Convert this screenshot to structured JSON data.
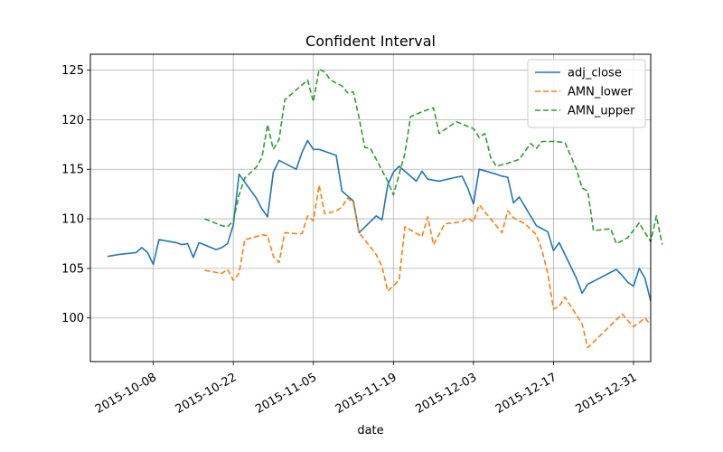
{
  "chart_data": {
    "type": "line",
    "title": "Confident Interval",
    "xlabel": "date",
    "ylabel": "",
    "xlim": [
      "2015-09-27",
      "2016-01-03"
    ],
    "ylim": [
      95.6,
      126.6
    ],
    "grid": true,
    "legend_position": "top-right",
    "x_ticks": [
      "2015-10-08",
      "2015-10-22",
      "2015-11-05",
      "2015-11-19",
      "2015-12-03",
      "2015-12-17",
      "2015-12-31"
    ],
    "y_ticks": [
      100,
      105,
      110,
      115,
      120,
      125
    ],
    "series": [
      {
        "name": "adj_close",
        "color": "#1f77b4",
        "style": "solid",
        "points": [
          [
            "2015-09-30",
            106.2
          ],
          [
            "2015-10-01",
            106.3
          ],
          [
            "2015-10-02",
            106.4
          ],
          [
            "2015-10-05",
            106.6
          ],
          [
            "2015-10-06",
            107.1
          ],
          [
            "2015-10-07",
            106.6
          ],
          [
            "2015-10-08",
            105.4
          ],
          [
            "2015-10-09",
            107.9
          ],
          [
            "2015-10-12",
            107.6
          ],
          [
            "2015-10-13",
            107.4
          ],
          [
            "2015-10-14",
            107.5
          ],
          [
            "2015-10-15",
            106.1
          ],
          [
            "2015-10-16",
            107.6
          ],
          [
            "2015-10-19",
            106.9
          ],
          [
            "2015-10-20",
            107.1
          ],
          [
            "2015-10-21",
            107.5
          ],
          [
            "2015-10-22",
            109.4
          ],
          [
            "2015-10-23",
            114.5
          ],
          [
            "2015-10-26",
            112.1
          ],
          [
            "2015-10-27",
            111.0
          ],
          [
            "2015-10-28",
            110.2
          ],
          [
            "2015-10-29",
            114.7
          ],
          [
            "2015-10-30",
            115.9
          ],
          [
            "2015-11-02",
            115.0
          ],
          [
            "2015-11-03",
            116.7
          ],
          [
            "2015-11-04",
            117.9
          ],
          [
            "2015-11-05",
            117.0
          ],
          [
            "2015-11-06",
            117.0
          ],
          [
            "2015-11-09",
            116.4
          ],
          [
            "2015-11-10",
            112.8
          ],
          [
            "2015-11-11",
            112.3
          ],
          [
            "2015-11-12",
            111.8
          ],
          [
            "2015-11-13",
            108.6
          ],
          [
            "2015-11-16",
            110.3
          ],
          [
            "2015-11-17",
            109.9
          ],
          [
            "2015-11-18",
            113.4
          ],
          [
            "2015-11-19",
            114.7
          ],
          [
            "2015-11-20",
            115.3
          ],
          [
            "2015-11-23",
            113.8
          ],
          [
            "2015-11-24",
            114.8
          ],
          [
            "2015-11-25",
            114.0
          ],
          [
            "2015-11-27",
            113.8
          ],
          [
            "2015-11-30",
            114.2
          ],
          [
            "2015-12-01",
            114.3
          ],
          [
            "2015-12-02",
            113.1
          ],
          [
            "2015-12-03",
            111.5
          ],
          [
            "2015-12-04",
            115.0
          ],
          [
            "2015-12-07",
            114.5
          ],
          [
            "2015-12-08",
            114.3
          ],
          [
            "2015-12-09",
            114.2
          ],
          [
            "2015-12-10",
            111.6
          ],
          [
            "2015-12-11",
            112.2
          ],
          [
            "2015-12-14",
            109.3
          ],
          [
            "2015-12-15",
            109.0
          ],
          [
            "2015-12-16",
            108.7
          ],
          [
            "2015-12-17",
            106.8
          ],
          [
            "2015-12-18",
            107.6
          ],
          [
            "2015-12-21",
            104.0
          ],
          [
            "2015-12-22",
            102.5
          ],
          [
            "2015-12-23",
            103.4
          ],
          [
            "2015-12-24",
            103.7
          ],
          [
            "2015-12-28",
            104.9
          ],
          [
            "2015-12-29",
            104.3
          ],
          [
            "2015-12-30",
            103.6
          ],
          [
            "2015-12-31",
            103.2
          ],
          [
            "2016-01-01",
            105.0
          ],
          [
            "2016-01-02",
            104.0
          ],
          [
            "2016-01-03",
            101.7
          ]
        ]
      },
      {
        "name": "AMN_lower",
        "color": "#ff7f0e",
        "style": "dashed",
        "points": [
          [
            "2015-10-17",
            104.8
          ],
          [
            "2015-10-20",
            104.5
          ],
          [
            "2015-10-21",
            104.9
          ],
          [
            "2015-10-22",
            103.8
          ],
          [
            "2015-10-23",
            104.5
          ],
          [
            "2015-10-24",
            107.9
          ],
          [
            "2015-10-26",
            108.2
          ],
          [
            "2015-10-27",
            108.4
          ],
          [
            "2015-10-28",
            108.3
          ],
          [
            "2015-10-29",
            106.2
          ],
          [
            "2015-10-30",
            105.6
          ],
          [
            "2015-10-31",
            108.6
          ],
          [
            "2015-11-02",
            108.5
          ],
          [
            "2015-11-03",
            108.5
          ],
          [
            "2015-11-04",
            110.3
          ],
          [
            "2015-11-05",
            109.8
          ],
          [
            "2015-11-06",
            113.4
          ],
          [
            "2015-11-07",
            110.5
          ],
          [
            "2015-11-09",
            110.8
          ],
          [
            "2015-11-10",
            111.2
          ],
          [
            "2015-11-11",
            112.1
          ],
          [
            "2015-11-12",
            111.6
          ],
          [
            "2015-11-13",
            108.6
          ],
          [
            "2015-11-16",
            106.4
          ],
          [
            "2015-11-17",
            105.2
          ],
          [
            "2015-11-18",
            102.7
          ],
          [
            "2015-11-20",
            103.8
          ],
          [
            "2015-11-21",
            109.2
          ],
          [
            "2015-11-24",
            108.2
          ],
          [
            "2015-11-25",
            110.2
          ],
          [
            "2015-11-26",
            107.4
          ],
          [
            "2015-11-28",
            109.5
          ],
          [
            "2015-12-01",
            109.7
          ],
          [
            "2015-12-02",
            110.1
          ],
          [
            "2015-12-03",
            109.7
          ],
          [
            "2015-12-04",
            111.4
          ],
          [
            "2015-12-08",
            108.6
          ],
          [
            "2015-12-09",
            110.8
          ],
          [
            "2015-12-10",
            110.1
          ],
          [
            "2015-12-12",
            109.5
          ],
          [
            "2015-12-14",
            108.4
          ],
          [
            "2015-12-15",
            106.8
          ],
          [
            "2015-12-16",
            104.5
          ],
          [
            "2015-12-17",
            100.9
          ],
          [
            "2015-12-18",
            101.2
          ],
          [
            "2015-12-19",
            102.1
          ],
          [
            "2015-12-22",
            99.4
          ],
          [
            "2015-12-23",
            97.0
          ],
          [
            "2015-12-29",
            100.4
          ],
          [
            "2015-12-31",
            99.1
          ],
          [
            "2016-01-02",
            100.0
          ],
          [
            "2016-01-03",
            99.3
          ]
        ]
      },
      {
        "name": "AMN_upper",
        "color": "#2ca02c",
        "style": "dashed",
        "points": [
          [
            "2015-10-17",
            110.0
          ],
          [
            "2015-10-20",
            109.3
          ],
          [
            "2015-10-21",
            109.2
          ],
          [
            "2015-10-22",
            109.8
          ],
          [
            "2015-10-23",
            112.4
          ],
          [
            "2015-10-24",
            114.1
          ],
          [
            "2015-10-26",
            115.2
          ],
          [
            "2015-10-27",
            116.2
          ],
          [
            "2015-10-28",
            119.5
          ],
          [
            "2015-10-29",
            117.0
          ],
          [
            "2015-10-30",
            118.0
          ],
          [
            "2015-10-31",
            122.0
          ],
          [
            "2015-11-03",
            123.5
          ],
          [
            "2015-11-04",
            124.0
          ],
          [
            "2015-11-05",
            121.8
          ],
          [
            "2015-11-06",
            125.1
          ],
          [
            "2015-11-07",
            124.8
          ],
          [
            "2015-11-08",
            124.0
          ],
          [
            "2015-11-10",
            123.4
          ],
          [
            "2015-11-11",
            122.7
          ],
          [
            "2015-11-12",
            122.8
          ],
          [
            "2015-11-13",
            120.2
          ],
          [
            "2015-11-14",
            117.2
          ],
          [
            "2015-11-15",
            117.1
          ],
          [
            "2015-11-18",
            113.8
          ],
          [
            "2015-11-19",
            112.4
          ],
          [
            "2015-11-21",
            116.6
          ],
          [
            "2015-11-22",
            120.3
          ],
          [
            "2015-11-24",
            120.8
          ],
          [
            "2015-11-26",
            121.2
          ],
          [
            "2015-11-27",
            118.6
          ],
          [
            "2015-11-30",
            119.8
          ],
          [
            "2015-12-03",
            119.1
          ],
          [
            "2015-12-04",
            118.2
          ],
          [
            "2015-12-05",
            118.6
          ],
          [
            "2015-12-06",
            116.2
          ],
          [
            "2015-12-07",
            115.3
          ],
          [
            "2015-12-09",
            115.6
          ],
          [
            "2015-12-11",
            116.0
          ],
          [
            "2015-12-13",
            117.6
          ],
          [
            "2015-12-14",
            117.1
          ],
          [
            "2015-12-15",
            117.8
          ],
          [
            "2015-12-17",
            117.8
          ],
          [
            "2015-12-19",
            117.7
          ],
          [
            "2015-12-21",
            115.0
          ],
          [
            "2015-12-22",
            113.1
          ],
          [
            "2015-12-23",
            112.8
          ],
          [
            "2015-12-24",
            108.8
          ],
          [
            "2015-12-27",
            109.0
          ],
          [
            "2015-12-28",
            107.5
          ],
          [
            "2015-12-30",
            108.1
          ],
          [
            "2016-01-01",
            109.6
          ],
          [
            "2016-01-02",
            108.6
          ],
          [
            "2016-01-03",
            107.7
          ],
          [
            "2016-01-04",
            110.3
          ],
          [
            "2016-01-05",
            107.4
          ]
        ]
      }
    ]
  }
}
